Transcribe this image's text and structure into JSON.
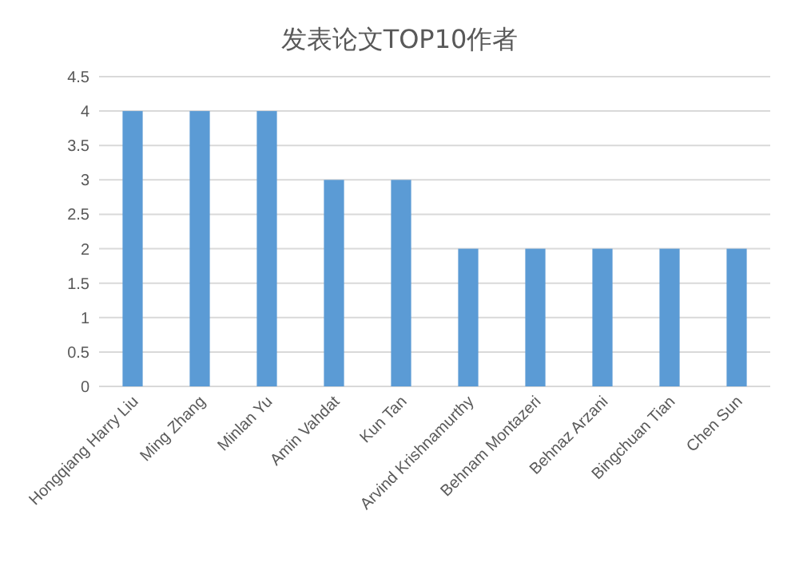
{
  "chart_data": {
    "type": "bar",
    "title": "发表论文TOP10作者",
    "categories": [
      "Hongqiang Harry Liu",
      "Ming Zhang",
      "Minlan Yu",
      "Amin Vahdat",
      "Kun Tan",
      "Arvind Krishnamurthy",
      "Behnam Montazeri",
      "Behnaz Arzani",
      "Bingchuan Tian",
      "Chen Sun"
    ],
    "values": [
      4,
      4,
      4,
      3,
      3,
      2,
      2,
      2,
      2,
      2
    ],
    "color": "#5b9bd5",
    "ylim": [
      0,
      4.5
    ],
    "yticks": [
      0,
      0.5,
      1,
      1.5,
      2,
      2.5,
      3,
      3.5,
      4,
      4.5
    ],
    "grid": "y"
  }
}
